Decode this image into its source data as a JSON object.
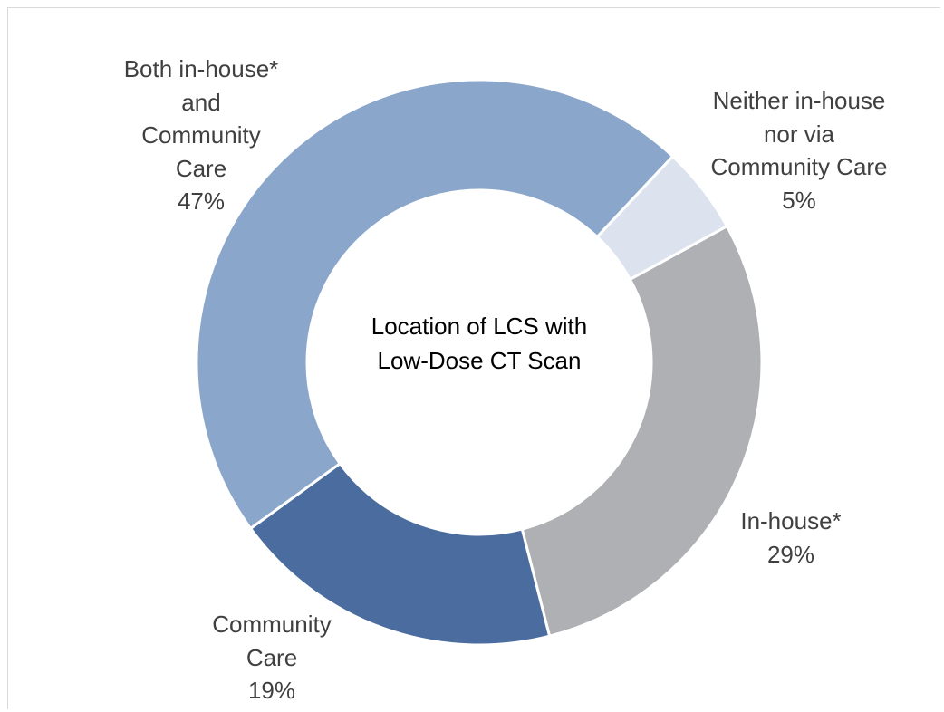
{
  "chart_data": {
    "type": "donut",
    "title": "Location of LCS with Low-Dose CT Scan",
    "categories": [
      "Neither in-house nor via Community Care",
      "In-house*",
      "Community Care",
      "Both in-house* and Community Care"
    ],
    "values": [
      5,
      29,
      19,
      47
    ],
    "value_labels": [
      "5%",
      "29%",
      "19%",
      "47%"
    ],
    "colors": [
      "#dce3ef",
      "#aeb0b4",
      "#4a6c9e",
      "#8ba6cb"
    ]
  }
}
